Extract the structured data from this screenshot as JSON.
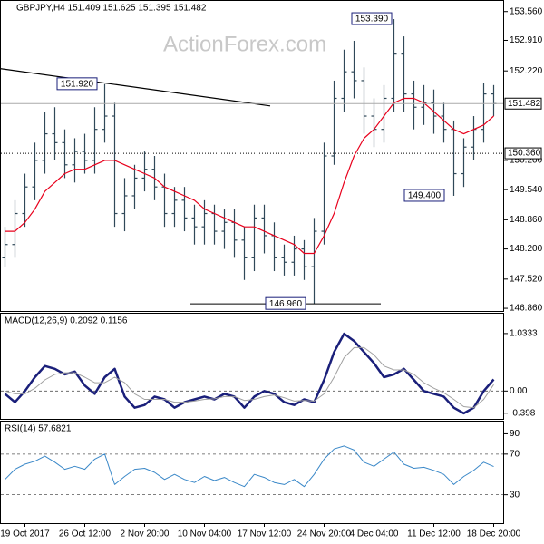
{
  "chart_data": [
    {
      "type": "ohlc",
      "title": "GBPJPY,H4  151.409 151.625 151.395 151.482",
      "watermark": "ActionForex.com",
      "color": "#2f4858",
      "categories": [
        null,
        null,
        "19 Oct 2017",
        null,
        null,
        null,
        null,
        null,
        "26 Oct 12:00",
        null,
        null,
        null,
        null,
        null,
        "2 Nov 20:00",
        null,
        null,
        null,
        null,
        null,
        "10 Nov 04:00",
        null,
        null,
        null,
        null,
        null,
        "17 Nov 12:00",
        null,
        null,
        null,
        null,
        null,
        "24 Nov 20:00",
        null,
        null,
        null,
        null,
        "4 Dec 04:00",
        null,
        null,
        null,
        null,
        null,
        "11 Dec 12:00",
        null,
        null,
        null,
        null,
        null,
        "18 Dec 20:00"
      ],
      "open": [
        148.0,
        148.3,
        149.0,
        149.6,
        150.2,
        150.8,
        150.6,
        150.1,
        150.4,
        150.2,
        150.9,
        151.2,
        149.0,
        149.4,
        149.8,
        150.0,
        149.6,
        149.0,
        149.3,
        148.9,
        148.7,
        149.0,
        148.6,
        148.8,
        148.4,
        148.0,
        148.9,
        148.5,
        148.0,
        147.9,
        148.2,
        147.8,
        148.6,
        150.3,
        151.6,
        152.2,
        152.0,
        151.2,
        150.9,
        151.6,
        152.6,
        151.7,
        151.4,
        151.5,
        151.2,
        150.9,
        149.9,
        150.5,
        150.9,
        151.7
      ],
      "high": [
        148.7,
        149.3,
        149.9,
        150.6,
        151.3,
        151.4,
        150.9,
        150.7,
        150.8,
        151.4,
        151.92,
        151.5,
        149.8,
        150.1,
        150.4,
        150.3,
        149.9,
        149.6,
        149.6,
        149.2,
        149.3,
        149.2,
        149.1,
        149.1,
        148.7,
        149.2,
        149.2,
        148.8,
        148.3,
        148.5,
        148.4,
        148.9,
        150.6,
        152.0,
        152.7,
        152.9,
        152.3,
        151.6,
        151.9,
        153.39,
        153.0,
        152.0,
        151.9,
        151.8,
        151.5,
        151.1,
        150.7,
        151.2,
        151.95,
        151.9
      ],
      "low": [
        147.8,
        148.0,
        148.7,
        149.3,
        149.9,
        150.2,
        149.8,
        149.7,
        149.9,
        149.9,
        150.6,
        148.7,
        148.6,
        149.1,
        149.5,
        149.3,
        148.7,
        148.7,
        148.6,
        148.3,
        148.3,
        148.3,
        148.2,
        148.0,
        147.5,
        147.7,
        148.1,
        147.7,
        147.6,
        147.6,
        147.5,
        146.96,
        148.3,
        150.1,
        151.3,
        151.6,
        150.8,
        150.5,
        150.6,
        151.3,
        151.3,
        150.9,
        151.0,
        150.8,
        150.6,
        149.4,
        149.6,
        150.2,
        150.6,
        151.2
      ],
      "close": [
        148.3,
        149.0,
        149.6,
        150.2,
        150.8,
        150.6,
        150.1,
        150.4,
        150.2,
        150.9,
        151.2,
        149.0,
        149.4,
        149.8,
        150.0,
        149.6,
        149.0,
        149.3,
        148.9,
        148.7,
        149.0,
        148.6,
        148.8,
        148.4,
        148.0,
        148.9,
        148.5,
        148.0,
        147.9,
        148.2,
        147.8,
        148.6,
        150.3,
        151.6,
        152.2,
        152.0,
        151.2,
        150.9,
        151.6,
        152.6,
        151.7,
        151.4,
        151.5,
        151.2,
        150.9,
        149.9,
        150.5,
        150.9,
        151.7,
        151.482
      ],
      "overlays": [
        {
          "color": "#e8001c",
          "values": [
            148.6,
            148.6,
            148.8,
            149.1,
            149.5,
            149.7,
            149.9,
            150.0,
            150.0,
            150.1,
            150.2,
            150.2,
            150.1,
            150.0,
            149.9,
            149.8,
            149.6,
            149.5,
            149.4,
            149.3,
            149.1,
            149.0,
            148.9,
            148.8,
            148.7,
            148.7,
            148.6,
            148.5,
            148.4,
            148.3,
            148.1,
            148.1,
            148.5,
            149.0,
            149.7,
            150.3,
            150.7,
            150.9,
            151.2,
            151.5,
            151.6,
            151.6,
            151.5,
            151.3,
            151.1,
            150.9,
            150.8,
            150.9,
            151.0,
            151.2
          ]
        }
      ],
      "ylim": [
        146.8,
        153.8
      ],
      "yticks": [
        {
          "value": 146.86,
          "label": "146.860"
        },
        {
          "value": 147.52,
          "label": "147.520"
        },
        {
          "value": 148.2,
          "label": "148.200"
        },
        {
          "value": 148.86,
          "label": "148.860"
        },
        {
          "value": 149.54,
          "label": "149.540"
        },
        {
          "value": 150.2,
          "label": "150.200"
        },
        {
          "value": 152.22,
          "label": "152.220"
        },
        {
          "value": 152.91,
          "label": "152.910"
        },
        {
          "value": 153.56,
          "label": "153.560"
        }
      ],
      "levels": [
        {
          "value": 151.482,
          "label": "151.482",
          "style": "solid"
        },
        {
          "value": 150.36,
          "label": "150.360",
          "style": "dotted"
        }
      ],
      "trendline": [
        152.27,
        151.43
      ],
      "annotations": [
        {
          "value": 151.92,
          "label": "151.920"
        },
        {
          "value": 153.39,
          "label": "153.390"
        },
        {
          "value": 149.4,
          "label": "149.400"
        },
        {
          "value": 146.96,
          "label": "146.960"
        }
      ]
    },
    {
      "type": "line",
      "title": "MACD(12,26,9) 0.2092 0.1156",
      "series": [
        {
          "color": "#1a1f7a",
          "width": 2.5,
          "values": [
            -0.05,
            -0.2,
            0.0,
            0.25,
            0.45,
            0.4,
            0.3,
            0.35,
            0.1,
            -0.05,
            0.25,
            0.4,
            -0.1,
            -0.3,
            -0.25,
            -0.1,
            -0.15,
            -0.3,
            -0.2,
            -0.15,
            -0.1,
            -0.15,
            -0.05,
            -0.1,
            -0.3,
            -0.1,
            0.0,
            -0.05,
            -0.2,
            -0.25,
            -0.15,
            -0.2,
            0.2,
            0.7,
            1.03,
            0.9,
            0.7,
            0.5,
            0.25,
            0.3,
            0.4,
            0.2,
            0.0,
            -0.05,
            -0.1,
            -0.3,
            -0.4,
            -0.3,
            0.0,
            0.2092
          ]
        },
        {
          "color": "#a0a0a0",
          "width": 1,
          "values": [
            0.0,
            -0.05,
            -0.05,
            0.05,
            0.2,
            0.3,
            0.33,
            0.33,
            0.25,
            0.15,
            0.15,
            0.25,
            0.15,
            -0.05,
            -0.15,
            -0.15,
            -0.15,
            -0.2,
            -0.2,
            -0.18,
            -0.15,
            -0.14,
            -0.1,
            -0.1,
            -0.17,
            -0.15,
            -0.1,
            -0.07,
            -0.12,
            -0.18,
            -0.17,
            -0.18,
            -0.05,
            0.25,
            0.6,
            0.78,
            0.78,
            0.65,
            0.45,
            0.38,
            0.38,
            0.3,
            0.15,
            0.05,
            -0.03,
            -0.15,
            -0.28,
            -0.3,
            -0.15,
            0.1156
          ]
        }
      ],
      "ylim": [
        -0.5,
        1.39
      ],
      "yticks": [
        -0.398,
        {
          "value": 0,
          "label": "0.00"
        },
        1.0333
      ],
      "grid_values": [
        0
      ]
    },
    {
      "type": "line",
      "title": "RSI(14) 57.6821",
      "series": [
        {
          "color": "#3a88c8",
          "width": 1,
          "values": [
            45,
            55,
            60,
            63,
            68,
            62,
            55,
            58,
            55,
            65,
            70,
            40,
            48,
            55,
            56,
            52,
            45,
            50,
            45,
            42,
            48,
            44,
            47,
            42,
            38,
            50,
            47,
            42,
            40,
            45,
            38,
            50,
            65,
            75,
            78,
            74,
            62,
            58,
            65,
            72,
            60,
            56,
            57,
            54,
            50,
            40,
            48,
            54,
            62,
            57.6821
          ]
        }
      ],
      "ylim": [
        2,
        102
      ],
      "yticks": [
        30,
        70,
        90
      ],
      "grid_values": [
        30,
        70
      ]
    }
  ]
}
